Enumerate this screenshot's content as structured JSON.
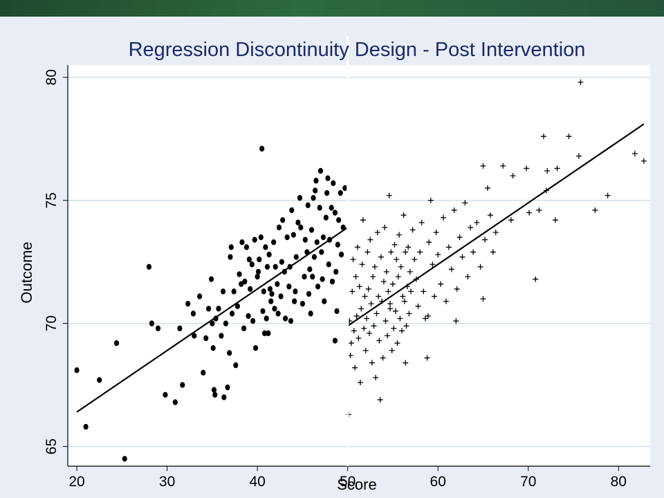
{
  "chart_data": {
    "type": "scatter",
    "title": "Regression Discontinuity Design - Post Intervention",
    "xlabel": "Score",
    "ylabel": "Outcome",
    "xlim": [
      19,
      83.5
    ],
    "ylim": [
      64.2,
      80.5
    ],
    "xticks": [
      20,
      30,
      40,
      50,
      60,
      70,
      80
    ],
    "yticks": [
      65,
      70,
      75,
      80
    ],
    "grid": "horizontal",
    "cutoff": 50,
    "series": [
      {
        "marker": "dot",
        "points": [
          [
            20,
            68.1
          ],
          [
            21,
            65.8
          ],
          [
            22.5,
            67.7
          ],
          [
            24.4,
            69.2
          ],
          [
            25.3,
            64.5
          ],
          [
            28,
            72.3
          ],
          [
            28.3,
            70
          ],
          [
            29,
            69.8
          ],
          [
            29.8,
            67.1
          ],
          [
            30.9,
            66.8
          ],
          [
            31.4,
            69.8
          ],
          [
            31.7,
            67.5
          ],
          [
            32.3,
            70.8
          ],
          [
            32.9,
            70.4
          ],
          [
            33,
            69.5
          ],
          [
            33.6,
            71.1
          ],
          [
            34,
            68
          ],
          [
            34.3,
            69.4
          ],
          [
            34.6,
            70.6
          ],
          [
            34.9,
            71.8
          ],
          [
            35,
            70
          ],
          [
            35.1,
            69
          ],
          [
            35.2,
            67.3
          ],
          [
            35.3,
            67.1
          ],
          [
            35.4,
            70.2
          ],
          [
            35.7,
            70.6
          ],
          [
            36,
            69.5
          ],
          [
            36.2,
            71.3
          ],
          [
            36.3,
            67
          ],
          [
            36.5,
            70
          ],
          [
            36.7,
            67.4
          ],
          [
            37,
            72.7
          ],
          [
            37.1,
            73.1
          ],
          [
            37.2,
            70.4
          ],
          [
            37.4,
            71.3
          ],
          [
            37.6,
            68.3
          ],
          [
            37.8,
            70.7
          ],
          [
            38,
            72
          ],
          [
            38.3,
            73.3
          ],
          [
            38.5,
            69.8
          ],
          [
            38.6,
            71.7
          ],
          [
            38.8,
            73.1
          ],
          [
            39,
            70.3
          ],
          [
            39.2,
            71.4
          ],
          [
            39.4,
            72.4
          ],
          [
            39.5,
            70.1
          ],
          [
            39.7,
            73.4
          ],
          [
            39.8,
            69
          ],
          [
            40,
            71.9
          ],
          [
            40.1,
            72.1
          ],
          [
            40.2,
            72.6
          ],
          [
            40.4,
            73.5
          ],
          [
            40.5,
            77.1
          ],
          [
            40.6,
            70.5
          ],
          [
            40.7,
            71.3
          ],
          [
            40.9,
            73.1
          ],
          [
            41,
            70.2
          ],
          [
            41.1,
            72.3
          ],
          [
            41.2,
            69.6
          ],
          [
            41.3,
            72.8
          ],
          [
            41.5,
            70.9
          ],
          [
            41.6,
            71.2
          ],
          [
            41.8,
            73.3
          ],
          [
            41.9,
            70.6
          ],
          [
            42,
            72.3
          ],
          [
            42.2,
            71.6
          ],
          [
            42.3,
            70.4
          ],
          [
            42.4,
            73.9
          ],
          [
            42.6,
            71.1
          ],
          [
            42.8,
            74.2
          ],
          [
            43,
            72.1
          ],
          [
            43.1,
            70.2
          ],
          [
            43.3,
            73.5
          ],
          [
            43.5,
            71.5
          ],
          [
            43.6,
            72.3
          ],
          [
            43.8,
            74.6
          ],
          [
            44,
            73.6
          ],
          [
            44.2,
            71.3
          ],
          [
            44.3,
            72.7
          ],
          [
            44.5,
            74.1
          ],
          [
            44.7,
            75.1
          ],
          [
            44.8,
            73.9
          ],
          [
            45,
            70.8
          ],
          [
            45.2,
            71.9
          ],
          [
            45.3,
            73.4
          ],
          [
            45.5,
            72.9
          ],
          [
            45.6,
            74.8
          ],
          [
            45.8,
            72.2
          ],
          [
            45.9,
            70.4
          ],
          [
            46,
            73.8
          ],
          [
            46.2,
            75.1
          ],
          [
            46.3,
            72.7
          ],
          [
            46.5,
            75.8
          ],
          [
            46.6,
            73.3
          ],
          [
            46.7,
            71.5
          ],
          [
            46.9,
            74.7
          ],
          [
            47,
            76.2
          ],
          [
            47.1,
            72.9
          ],
          [
            47.3,
            73.5
          ],
          [
            47.4,
            70.9
          ],
          [
            47.6,
            74.3
          ],
          [
            47.7,
            75.3
          ],
          [
            47.9,
            72.4
          ],
          [
            48,
            73.4
          ],
          [
            48.2,
            74.7
          ],
          [
            48.3,
            71.7
          ],
          [
            48.4,
            75.7
          ],
          [
            48.6,
            74.5
          ],
          [
            48.7,
            72.1
          ],
          [
            48.9,
            73.2
          ],
          [
            49,
            74.2
          ],
          [
            49.2,
            75.3
          ],
          [
            49.3,
            72.8
          ],
          [
            49.5,
            73.9
          ],
          [
            49.7,
            75.5
          ],
          [
            48.6,
            69.3
          ],
          [
            46.1,
            71.9
          ],
          [
            43.7,
            70.1
          ],
          [
            41.4,
            71.4
          ],
          [
            39.1,
            72.6
          ],
          [
            36.9,
            68.8
          ],
          [
            38.2,
            71.6
          ],
          [
            40.8,
            69.6
          ],
          [
            42.7,
            72.5
          ],
          [
            44.1,
            70.9
          ],
          [
            45.7,
            71.2
          ],
          [
            47.2,
            71.8
          ],
          [
            48.8,
            70.5
          ],
          [
            47.8,
            75.9
          ],
          [
            46.4,
            75.4
          ]
        ]
      },
      {
        "marker": "plus",
        "points": [
          [
            50.1,
            66.3
          ],
          [
            50.2,
            70.1
          ],
          [
            50.3,
            68.7
          ],
          [
            50.4,
            69.2
          ],
          [
            50.5,
            71.3
          ],
          [
            50.6,
            72.6
          ],
          [
            50.7,
            69.7
          ],
          [
            50.8,
            68.2
          ],
          [
            50.9,
            71.9
          ],
          [
            51,
            70.3
          ],
          [
            51.1,
            73.1
          ],
          [
            51.2,
            69.4
          ],
          [
            51.3,
            71.5
          ],
          [
            51.4,
            67.6
          ],
          [
            51.5,
            70.6
          ],
          [
            51.6,
            72.4
          ],
          [
            51.7,
            74.2
          ],
          [
            51.8,
            69.8
          ],
          [
            51.9,
            71.1
          ],
          [
            52,
            68.9
          ],
          [
            52.1,
            70.2
          ],
          [
            52.2,
            72.9
          ],
          [
            52.3,
            71.4
          ],
          [
            52.4,
            69.6
          ],
          [
            52.5,
            73.4
          ],
          [
            52.6,
            70.8
          ],
          [
            52.7,
            68.4
          ],
          [
            52.8,
            71.9
          ],
          [
            52.9,
            69.9
          ],
          [
            53,
            72.3
          ],
          [
            53.1,
            67.8
          ],
          [
            53.2,
            70.4
          ],
          [
            53.3,
            73.7
          ],
          [
            53.4,
            71.1
          ],
          [
            53.5,
            69.3
          ],
          [
            53.6,
            66.9
          ],
          [
            53.7,
            72.7
          ],
          [
            53.8,
            70.9
          ],
          [
            53.9,
            68.6
          ],
          [
            54,
            71.7
          ],
          [
            54.1,
            73.9
          ],
          [
            54.2,
            70.1
          ],
          [
            54.3,
            72.1
          ],
          [
            54.4,
            69.5
          ],
          [
            54.5,
            71.3
          ],
          [
            54.6,
            75.2
          ],
          [
            54.7,
            70.6
          ],
          [
            54.8,
            72.9
          ],
          [
            54.9,
            68.9
          ],
          [
            55,
            71.6
          ],
          [
            55.1,
            69.8
          ],
          [
            55.2,
            73.2
          ],
          [
            55.3,
            70.5
          ],
          [
            55.4,
            72.6
          ],
          [
            55.5,
            69.2
          ],
          [
            55.6,
            71.9
          ],
          [
            55.7,
            73.6
          ],
          [
            55.8,
            70.2
          ],
          [
            55.9,
            72.3
          ],
          [
            56,
            69.7
          ],
          [
            56.1,
            71.1
          ],
          [
            56.2,
            74.4
          ],
          [
            56.3,
            70.9
          ],
          [
            56.4,
            72.9
          ],
          [
            56.5,
            69.9
          ],
          [
            56.6,
            71.5
          ],
          [
            56.7,
            73.1
          ],
          [
            56.8,
            70.4
          ],
          [
            56.9,
            72.1
          ],
          [
            57,
            71.3
          ],
          [
            57.2,
            73.8
          ],
          [
            57.4,
            72.6
          ],
          [
            57.6,
            71.8
          ],
          [
            57.8,
            70.7
          ],
          [
            58,
            72.9
          ],
          [
            58.2,
            74.1
          ],
          [
            58.4,
            71.3
          ],
          [
            58.6,
            70.2
          ],
          [
            58.8,
            68.6
          ],
          [
            59,
            73.3
          ],
          [
            59.2,
            75
          ],
          [
            59.4,
            72.4
          ],
          [
            59.6,
            71.1
          ],
          [
            59.8,
            73.7
          ],
          [
            60,
            72.8
          ],
          [
            60.3,
            71.6
          ],
          [
            60.6,
            74.3
          ],
          [
            60.9,
            70.9
          ],
          [
            61.2,
            73.1
          ],
          [
            61.5,
            72.2
          ],
          [
            61.8,
            74.6
          ],
          [
            62.1,
            71.4
          ],
          [
            62.4,
            73.5
          ],
          [
            62.7,
            72.7
          ],
          [
            63,
            74.9
          ],
          [
            63.3,
            71.9
          ],
          [
            63.6,
            73.9
          ],
          [
            63.9,
            72.9
          ],
          [
            64.3,
            74.1
          ],
          [
            64.7,
            72.3
          ],
          [
            65,
            76.4
          ],
          [
            65.2,
            73.4
          ],
          [
            65.5,
            75.5
          ],
          [
            65.8,
            74.4
          ],
          [
            66.1,
            72.9
          ],
          [
            66.4,
            73.7
          ],
          [
            67.2,
            76.4
          ],
          [
            68.1,
            74.2
          ],
          [
            68.3,
            76
          ],
          [
            69.8,
            76.3
          ],
          [
            70.1,
            74.5
          ],
          [
            70.8,
            71.8
          ],
          [
            71.2,
            74.6
          ],
          [
            71.7,
            77.6
          ],
          [
            72,
            75.4
          ],
          [
            72.1,
            76.2
          ],
          [
            73,
            74.2
          ],
          [
            73.2,
            76.3
          ],
          [
            74.5,
            77.6
          ],
          [
            75.6,
            76.8
          ],
          [
            75.8,
            79.8
          ],
          [
            77.4,
            74.6
          ],
          [
            78.8,
            75.2
          ],
          [
            81.8,
            76.9
          ],
          [
            82.8,
            76.6
          ],
          [
            56.4,
            68.4
          ],
          [
            54.7,
            70.8
          ],
          [
            58.9,
            70.3
          ],
          [
            62,
            70.1
          ],
          [
            65,
            71
          ]
        ]
      }
    ],
    "fit_lines": [
      {
        "x": [
          20,
          50
        ],
        "y": [
          66.4,
          73.9
        ]
      },
      {
        "x": [
          50,
          82.8
        ],
        "y": [
          69.9,
          78.1
        ]
      }
    ]
  }
}
